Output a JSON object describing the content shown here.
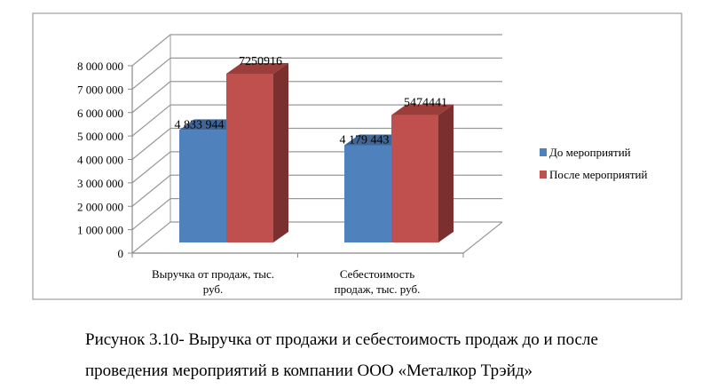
{
  "chart_data": {
    "type": "bar",
    "style": "3d-clustered",
    "categories": [
      "Выручка от продаж, тыс. руб.",
      "Себестоимость продаж, тыс. руб."
    ],
    "category_lines": [
      [
        "Выручка от продаж, тыс.",
        "руб."
      ],
      [
        "Себестоимость",
        "продаж, тыс. руб."
      ]
    ],
    "series": [
      {
        "name": "До мероприятий",
        "values": [
          4833944,
          4179443
        ],
        "labels": [
          "4 833 944",
          "4 179 443"
        ],
        "color": "#4F81BD",
        "top": "#3F6696",
        "side": "#385D8A"
      },
      {
        "name": "После мероприятий",
        "values": [
          7250916,
          5474441
        ],
        "labels": [
          "7250916",
          "5474441"
        ],
        "color": "#C0504D",
        "top": "#9B3D3B",
        "side": "#7B302F"
      }
    ],
    "ylim": [
      0,
      8000000
    ],
    "yticks": [
      0,
      1000000,
      2000000,
      3000000,
      4000000,
      5000000,
      6000000,
      7000000,
      8000000
    ],
    "ytick_labels": [
      "0",
      "1 000 000",
      "2 000 000",
      "3 000 000",
      "4 000 000",
      "5 000 000",
      "6 000 000",
      "7 000 000",
      "8 000 000"
    ],
    "grid": true,
    "legend": "right"
  },
  "caption": {
    "line1": "Рисунок 3.10- Выручка от продажи и себестоимость продаж до и после",
    "line2": "проведения мероприятий в компании ООО «Металкор Трэйд»"
  }
}
